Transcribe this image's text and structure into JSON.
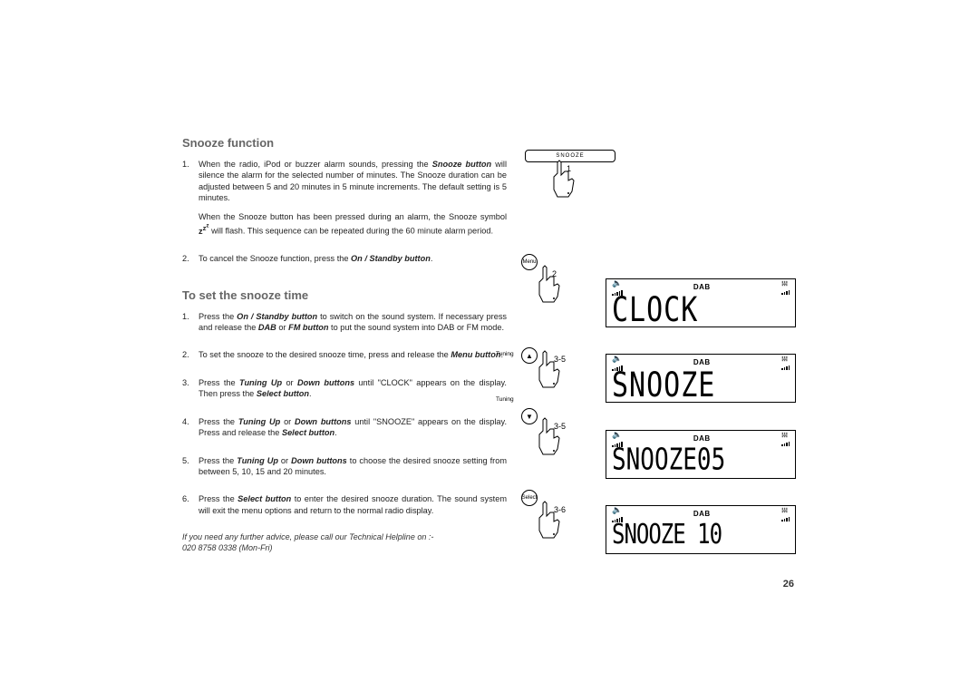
{
  "section1": {
    "title": "Snooze function",
    "items": [
      {
        "num": "1.",
        "paras": [
          "When the radio, iPod or buzzer alarm sounds, pressing the <b><i>Snooze button</i></b> will silence the alarm for the selected number of minutes. The Snooze duration can be adjusted between 5 and 20 minutes in 5 minute increments. The default setting is 5 minutes.",
          "When the Snooze button has been pressed during an alarm, the Snooze symbol <b>z<sup>z<sup>z</sup></sup></b> will flash. This sequence can be repeated during the 60 minute alarm period."
        ]
      },
      {
        "num": "2.",
        "paras": [
          "To cancel the Snooze function, press the <b><i>On / Standby button</i></b>."
        ]
      }
    ]
  },
  "section2": {
    "title": "To set the snooze time",
    "items": [
      {
        "num": "1.",
        "paras": [
          "Press the <b><i>On / Standby button</i></b> to switch on the sound system. If necessary press and release the <b><i>DAB</i></b> or <b><i>FM button</i></b> to put the sound system into DAB or FM mode."
        ]
      },
      {
        "num": "2.",
        "paras": [
          "To set the snooze to the desired snooze time, press and release the <b><i>Menu button</i></b>."
        ]
      },
      {
        "num": "3.",
        "paras": [
          "Press the <b><i>Tuning Up</i></b> or <b><i>Down buttons</i></b> until \"CLOCK\" appears on the display. Then press the <b><i>Select button</i></b>."
        ]
      },
      {
        "num": "4.",
        "paras": [
          "Press the <b><i>Tuning Up</i></b> or <b><i>Down buttons</i></b> until \"SNOOZE\" appears on the display. Press and release the <b><i>Select button</i></b>."
        ]
      },
      {
        "num": "5.",
        "paras": [
          "Press the <b><i>Tuning Up</i></b> or <b><i>Down buttons</i></b> to choose the desired snooze setting from between 5, 10, 15 and 20 minutes."
        ]
      },
      {
        "num": "6.",
        "paras": [
          "Press the <b><i>Select button</i></b> to enter the desired snooze duration. The sound system will exit the menu options and return to the normal radio display."
        ]
      }
    ]
  },
  "footer": {
    "help": "If you need any further advice, please call our Technical Helpline on :-",
    "tel": "020 8758 0338 (Mon-Fri)",
    "page": "26"
  },
  "diagram": {
    "snooze_button_label": "SNOOZE",
    "steps": {
      "s1": "1",
      "s2": "2",
      "s35a": "3-5",
      "s35b": "3-5",
      "s36": "3-6"
    },
    "buttons": {
      "menu": "Menu",
      "tuning": "Tuning",
      "select": "Select",
      "up": "▲",
      "down": "▼"
    },
    "lcd_label": "DAB",
    "displays": {
      "d1": "CLOCK",
      "d2": "SNOOZE",
      "d3": "SNOOZE05",
      "d4": "SNOOZE 10"
    }
  }
}
